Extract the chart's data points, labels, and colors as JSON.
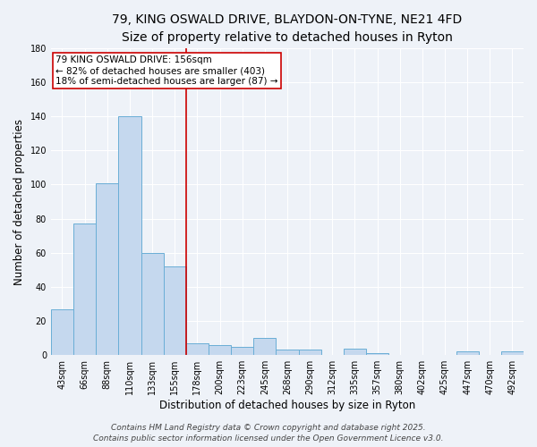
{
  "title_line1": "79, KING OSWALD DRIVE, BLAYDON-ON-TYNE, NE21 4FD",
  "title_line2": "Size of property relative to detached houses in Ryton",
  "xlabel": "Distribution of detached houses by size in Ryton",
  "ylabel": "Number of detached properties",
  "categories": [
    "43sqm",
    "66sqm",
    "88sqm",
    "110sqm",
    "133sqm",
    "155sqm",
    "178sqm",
    "200sqm",
    "223sqm",
    "245sqm",
    "268sqm",
    "290sqm",
    "312sqm",
    "335sqm",
    "357sqm",
    "380sqm",
    "402sqm",
    "425sqm",
    "447sqm",
    "470sqm",
    "492sqm"
  ],
  "values": [
    27,
    77,
    101,
    140,
    60,
    52,
    7,
    6,
    5,
    10,
    3,
    3,
    0,
    4,
    1,
    0,
    0,
    0,
    2,
    0,
    2
  ],
  "bar_color": "#c5d8ee",
  "bar_edge_color": "#6aaed6",
  "red_line_x": 5.5,
  "annotation_text": "79 KING OSWALD DRIVE: 156sqm\n← 82% of detached houses are smaller (403)\n18% of semi-detached houses are larger (87) →",
  "annotation_box_color": "#ffffff",
  "annotation_box_edge_color": "#cc0000",
  "red_line_color": "#cc0000",
  "ylim": [
    0,
    180
  ],
  "yticks": [
    0,
    20,
    40,
    60,
    80,
    100,
    120,
    140,
    160,
    180
  ],
  "footer_line1": "Contains HM Land Registry data © Crown copyright and database right 2025.",
  "footer_line2": "Contains public sector information licensed under the Open Government Licence v3.0.",
  "background_color": "#eef2f8",
  "axes_bg_color": "#eef2f8",
  "grid_color": "#ffffff",
  "title_fontsize": 10,
  "subtitle_fontsize": 9,
  "axis_label_fontsize": 8.5,
  "tick_fontsize": 7,
  "footer_fontsize": 6.5,
  "annotation_fontsize": 7.5
}
